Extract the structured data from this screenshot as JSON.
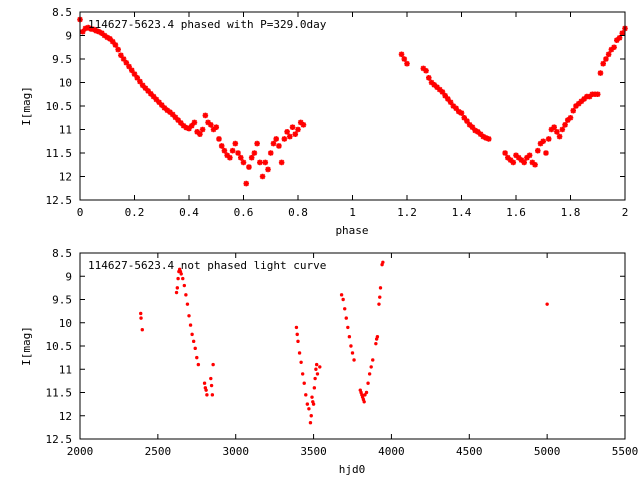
{
  "chart_data": [
    {
      "type": "scatter",
      "title": "114627-5623.4 phased with P=329.0day",
      "xlabel": "phase",
      "ylabel": "I[mag]",
      "xlim": [
        0,
        2
      ],
      "ylim": [
        12.5,
        8.5
      ],
      "y_inverted": true,
      "xticks": [
        "0",
        "0.2",
        "0.4",
        "0.6",
        "0.8",
        "1",
        "1.2",
        "1.4",
        "1.6",
        "1.8",
        "2"
      ],
      "yticks": [
        "8.5",
        "9",
        "9.5",
        "10",
        "10.5",
        "11",
        "11.5",
        "12",
        "12.5"
      ],
      "grid": false,
      "marker_color": "#ff0000",
      "marker": "star",
      "series": [
        {
          "points": [
            [
              0.0,
              8.66
            ],
            [
              0.01,
              8.92
            ],
            [
              0.02,
              8.85
            ],
            [
              0.03,
              8.83
            ],
            [
              0.04,
              8.86
            ],
            [
              0.05,
              8.87
            ],
            [
              0.06,
              8.9
            ],
            [
              0.07,
              8.92
            ],
            [
              0.08,
              8.95
            ],
            [
              0.09,
              9.0
            ],
            [
              0.1,
              9.04
            ],
            [
              0.11,
              9.07
            ],
            [
              0.12,
              9.13
            ],
            [
              0.13,
              9.2
            ],
            [
              0.14,
              9.3
            ],
            [
              0.15,
              9.42
            ],
            [
              0.16,
              9.5
            ],
            [
              0.17,
              9.58
            ],
            [
              0.18,
              9.66
            ],
            [
              0.19,
              9.74
            ],
            [
              0.2,
              9.82
            ],
            [
              0.21,
              9.9
            ],
            [
              0.22,
              9.98
            ],
            [
              0.23,
              10.06
            ],
            [
              0.24,
              10.12
            ],
            [
              0.25,
              10.18
            ],
            [
              0.26,
              10.24
            ],
            [
              0.27,
              10.3
            ],
            [
              0.28,
              10.36
            ],
            [
              0.29,
              10.42
            ],
            [
              0.3,
              10.48
            ],
            [
              0.31,
              10.54
            ],
            [
              0.32,
              10.59
            ],
            [
              0.33,
              10.63
            ],
            [
              0.34,
              10.68
            ],
            [
              0.35,
              10.74
            ],
            [
              0.36,
              10.8
            ],
            [
              0.37,
              10.86
            ],
            [
              0.38,
              10.92
            ],
            [
              0.39,
              10.96
            ],
            [
              0.4,
              10.98
            ],
            [
              0.41,
              10.92
            ],
            [
              0.42,
              10.85
            ],
            [
              0.43,
              11.05
            ],
            [
              0.44,
              11.1
            ],
            [
              0.45,
              11.0
            ],
            [
              0.46,
              10.7
            ],
            [
              0.47,
              10.85
            ],
            [
              0.48,
              10.9
            ],
            [
              0.49,
              11.0
            ],
            [
              0.5,
              10.95
            ],
            [
              0.51,
              11.2
            ],
            [
              0.52,
              11.35
            ],
            [
              0.53,
              11.45
            ],
            [
              0.54,
              11.55
            ],
            [
              0.55,
              11.6
            ],
            [
              0.56,
              11.45
            ],
            [
              0.57,
              11.3
            ],
            [
              0.58,
              11.5
            ],
            [
              0.59,
              11.6
            ],
            [
              0.6,
              11.7
            ],
            [
              0.61,
              12.15
            ],
            [
              0.62,
              11.8
            ],
            [
              0.63,
              11.6
            ],
            [
              0.64,
              11.5
            ],
            [
              0.65,
              11.3
            ],
            [
              0.66,
              11.7
            ],
            [
              0.67,
              12.0
            ],
            [
              0.68,
              11.7
            ],
            [
              0.69,
              11.85
            ],
            [
              0.7,
              11.5
            ],
            [
              0.71,
              11.3
            ],
            [
              0.72,
              11.2
            ],
            [
              0.73,
              11.35
            ],
            [
              0.74,
              11.7
            ],
            [
              0.75,
              11.2
            ],
            [
              0.76,
              11.05
            ],
            [
              0.77,
              11.15
            ],
            [
              0.78,
              10.95
            ],
            [
              0.79,
              11.1
            ],
            [
              0.8,
              11.0
            ],
            [
              0.81,
              10.85
            ],
            [
              0.82,
              10.9
            ],
            [
              1.18,
              9.4
            ],
            [
              1.19,
              9.5
            ],
            [
              1.2,
              9.6
            ],
            [
              1.26,
              9.7
            ],
            [
              1.27,
              9.75
            ],
            [
              1.28,
              9.9
            ],
            [
              1.29,
              10.0
            ],
            [
              1.3,
              10.05
            ],
            [
              1.31,
              10.1
            ],
            [
              1.32,
              10.15
            ],
            [
              1.33,
              10.2
            ],
            [
              1.34,
              10.28
            ],
            [
              1.35,
              10.35
            ],
            [
              1.36,
              10.42
            ],
            [
              1.37,
              10.5
            ],
            [
              1.38,
              10.55
            ],
            [
              1.39,
              10.62
            ],
            [
              1.4,
              10.65
            ],
            [
              1.41,
              10.75
            ],
            [
              1.42,
              10.82
            ],
            [
              1.43,
              10.9
            ],
            [
              1.44,
              10.95
            ],
            [
              1.45,
              11.02
            ],
            [
              1.46,
              11.05
            ],
            [
              1.47,
              11.1
            ],
            [
              1.48,
              11.15
            ],
            [
              1.49,
              11.18
            ],
            [
              1.5,
              11.2
            ],
            [
              1.56,
              11.5
            ],
            [
              1.57,
              11.6
            ],
            [
              1.58,
              11.65
            ],
            [
              1.59,
              11.7
            ],
            [
              1.6,
              11.55
            ],
            [
              1.61,
              11.6
            ],
            [
              1.62,
              11.65
            ],
            [
              1.63,
              11.7
            ],
            [
              1.64,
              11.6
            ],
            [
              1.65,
              11.55
            ],
            [
              1.66,
              11.7
            ],
            [
              1.67,
              11.75
            ],
            [
              1.68,
              11.45
            ],
            [
              1.69,
              11.3
            ],
            [
              1.7,
              11.25
            ],
            [
              1.71,
              11.5
            ],
            [
              1.72,
              11.2
            ],
            [
              1.73,
              11.0
            ],
            [
              1.74,
              10.95
            ],
            [
              1.75,
              11.05
            ],
            [
              1.76,
              11.15
            ],
            [
              1.77,
              11.0
            ],
            [
              1.78,
              10.9
            ],
            [
              1.79,
              10.8
            ],
            [
              1.8,
              10.75
            ],
            [
              1.81,
              10.6
            ],
            [
              1.82,
              10.5
            ],
            [
              1.83,
              10.45
            ],
            [
              1.84,
              10.4
            ],
            [
              1.85,
              10.35
            ],
            [
              1.86,
              10.3
            ],
            [
              1.87,
              10.3
            ],
            [
              1.88,
              10.25
            ],
            [
              1.89,
              10.25
            ],
            [
              1.9,
              10.25
            ],
            [
              1.91,
              9.8
            ],
            [
              1.92,
              9.6
            ],
            [
              1.93,
              9.5
            ],
            [
              1.94,
              9.4
            ],
            [
              1.95,
              9.3
            ],
            [
              1.96,
              9.25
            ],
            [
              1.97,
              9.1
            ],
            [
              1.98,
              9.05
            ],
            [
              1.99,
              8.95
            ],
            [
              2.0,
              8.85
            ]
          ]
        }
      ]
    },
    {
      "type": "scatter",
      "title": "114627-5623.4 not phased light curve",
      "xlabel": "hjd0",
      "ylabel": "I[mag]",
      "xlim": [
        2000,
        5500
      ],
      "ylim": [
        12.5,
        8.5
      ],
      "y_inverted": true,
      "xticks": [
        "2000",
        "2500",
        "3000",
        "3500",
        "4000",
        "4500",
        "5000",
        "5500"
      ],
      "yticks": [
        "8.5",
        "9",
        "9.5",
        "10",
        "10.5",
        "11",
        "11.5",
        "12",
        "12.5"
      ],
      "grid": false,
      "marker_color": "#ff0000",
      "marker": "dot",
      "series": [
        {
          "points": [
            [
              2390,
              9.8
            ],
            [
              2392,
              9.9
            ],
            [
              2400,
              10.15
            ],
            [
              2620,
              9.35
            ],
            [
              2625,
              9.25
            ],
            [
              2630,
              9.05
            ],
            [
              2635,
              8.9
            ],
            [
              2640,
              8.85
            ],
            [
              2645,
              8.9
            ],
            [
              2650,
              8.95
            ],
            [
              2660,
              9.05
            ],
            [
              2670,
              9.2
            ],
            [
              2680,
              9.4
            ],
            [
              2690,
              9.6
            ],
            [
              2700,
              9.85
            ],
            [
              2710,
              10.05
            ],
            [
              2720,
              10.25
            ],
            [
              2730,
              10.4
            ],
            [
              2740,
              10.55
            ],
            [
              2750,
              10.75
            ],
            [
              2760,
              10.9
            ],
            [
              2800,
              11.3
            ],
            [
              2805,
              11.4
            ],
            [
              2810,
              11.45
            ],
            [
              2815,
              11.55
            ],
            [
              2840,
              11.2
            ],
            [
              2845,
              11.35
            ],
            [
              2850,
              11.55
            ],
            [
              2855,
              10.9
            ],
            [
              3390,
              10.1
            ],
            [
              3395,
              10.25
            ],
            [
              3400,
              10.4
            ],
            [
              3410,
              10.65
            ],
            [
              3420,
              10.85
            ],
            [
              3430,
              11.1
            ],
            [
              3440,
              11.3
            ],
            [
              3450,
              11.55
            ],
            [
              3460,
              11.75
            ],
            [
              3470,
              11.85
            ],
            [
              3480,
              12.15
            ],
            [
              3485,
              12.0
            ],
            [
              3490,
              11.6
            ],
            [
              3495,
              11.7
            ],
            [
              3500,
              11.75
            ],
            [
              3505,
              11.4
            ],
            [
              3510,
              11.2
            ],
            [
              3515,
              11.0
            ],
            [
              3520,
              10.9
            ],
            [
              3525,
              11.1
            ],
            [
              3540,
              10.95
            ],
            [
              3680,
              9.4
            ],
            [
              3690,
              9.5
            ],
            [
              3700,
              9.7
            ],
            [
              3710,
              9.9
            ],
            [
              3720,
              10.1
            ],
            [
              3730,
              10.3
            ],
            [
              3740,
              10.5
            ],
            [
              3750,
              10.65
            ],
            [
              3760,
              10.8
            ],
            [
              3800,
              11.45
            ],
            [
              3805,
              11.5
            ],
            [
              3810,
              11.55
            ],
            [
              3815,
              11.6
            ],
            [
              3820,
              11.65
            ],
            [
              3825,
              11.7
            ],
            [
              3830,
              11.55
            ],
            [
              3840,
              11.5
            ],
            [
              3850,
              11.3
            ],
            [
              3860,
              11.1
            ],
            [
              3870,
              10.95
            ],
            [
              3880,
              10.8
            ],
            [
              3900,
              10.45
            ],
            [
              3905,
              10.35
            ],
            [
              3910,
              10.3
            ],
            [
              3920,
              9.6
            ],
            [
              3925,
              9.45
            ],
            [
              3930,
              9.25
            ],
            [
              3940,
              8.75
            ],
            [
              3945,
              8.7
            ],
            [
              5000,
              9.6
            ]
          ]
        }
      ]
    }
  ]
}
